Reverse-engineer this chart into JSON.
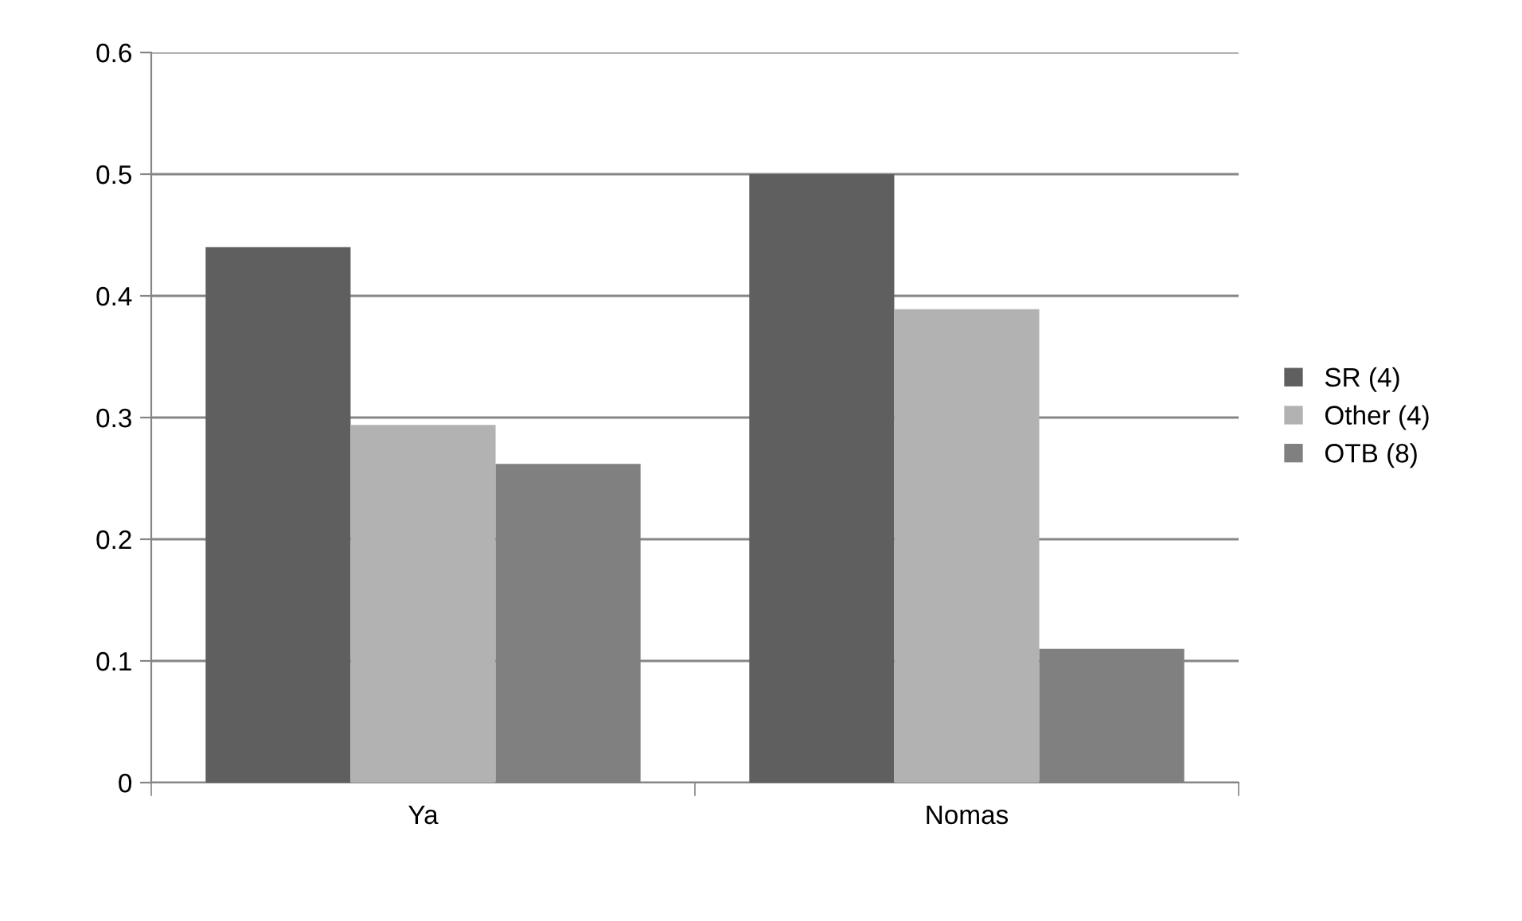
{
  "chart_data": {
    "type": "bar",
    "categories": [
      "Ya",
      "Nomas"
    ],
    "series": [
      {
        "name": "SR (4)",
        "color": "#5f5f5f",
        "values": [
          0.44,
          0.5
        ]
      },
      {
        "name": "Other (4)",
        "color": "#b2b2b2",
        "values": [
          0.294,
          0.389
        ]
      },
      {
        "name": "OTB (8)",
        "color": "#808080",
        "values": [
          0.262,
          0.11
        ]
      }
    ],
    "ylim": [
      0,
      0.6
    ],
    "yticks": [
      {
        "value": 0,
        "label": "0"
      },
      0.1,
      0.2,
      0.3,
      0.4,
      0.5,
      0.6
    ],
    "grid": "y",
    "legend": "right"
  }
}
